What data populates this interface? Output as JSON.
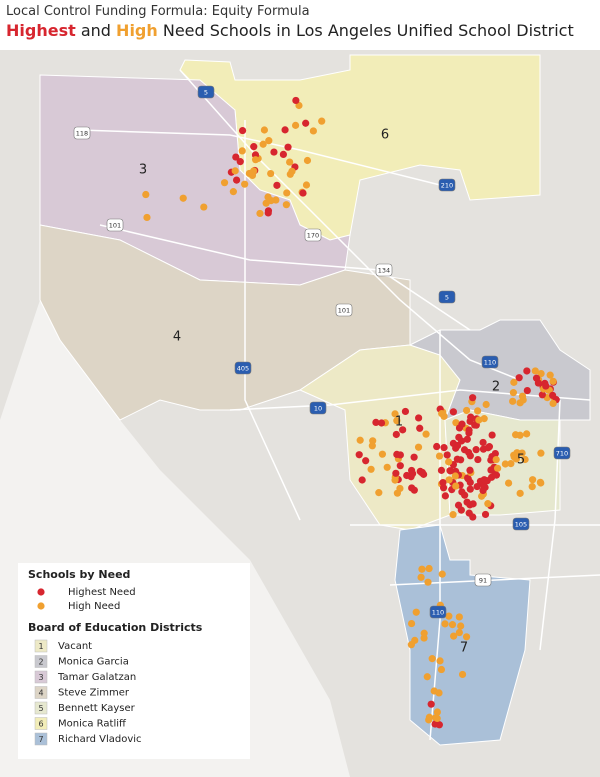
{
  "header": {
    "title": "Local Control Funding Formula: Equity Formula",
    "subtitle": {
      "highest": "Highest",
      "and": "and",
      "high": "High",
      "rest": "Need Schools in Los Angeles Unified School District"
    }
  },
  "map": {
    "district_labels": [
      "6",
      "3",
      "4",
      "2",
      "1",
      "5",
      "7"
    ],
    "freeways": [
      "5",
      "118",
      "210",
      "170",
      "101",
      "134",
      "5",
      "101",
      "405",
      "10",
      "110",
      "710",
      "105",
      "91",
      "110"
    ]
  },
  "legend": {
    "schools_title": "Schools by Need",
    "schools": [
      "Highest Need",
      "High Need"
    ],
    "districts_title": "Board of Education Districts",
    "districts": [
      {
        "number": "1",
        "name": "Vacant"
      },
      {
        "number": "2",
        "name": "Monica Garcia"
      },
      {
        "number": "3",
        "name": "Tamar Galatzan"
      },
      {
        "number": "4",
        "name": "Steve Zimmer"
      },
      {
        "number": "5",
        "name": "Bennett Kayser"
      },
      {
        "number": "6",
        "name": "Monica Ratliff"
      },
      {
        "number": "7",
        "name": "Richard Vladovic"
      }
    ]
  }
}
